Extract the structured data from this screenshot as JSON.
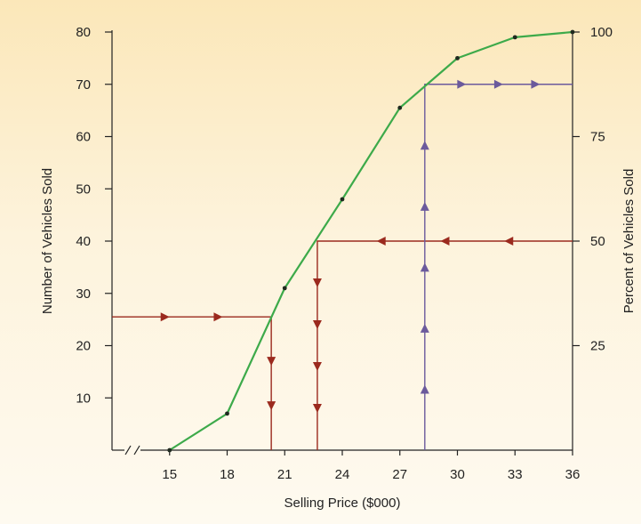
{
  "chart_data": {
    "type": "line",
    "title": "",
    "xlabel": "Selling Price ($000)",
    "ylabel": "Number of Vehicles Sold",
    "y2label": "Percent of Vehicles Sold",
    "xlim": [
      12,
      36
    ],
    "ylim": [
      0,
      80
    ],
    "y2lim": [
      0,
      100
    ],
    "x_axis_break": true,
    "x_ticks": [
      15,
      18,
      21,
      24,
      27,
      30,
      33,
      36
    ],
    "y_ticks": [
      10,
      20,
      30,
      40,
      50,
      60,
      70,
      80
    ],
    "y2_ticks": [
      25,
      50,
      75,
      100
    ],
    "grid": false,
    "series": [
      {
        "color": "#3daa4a",
        "points": [
          {
            "x": 15,
            "y": 0
          },
          {
            "x": 18,
            "y": 7
          },
          {
            "x": 21,
            "y": 31
          },
          {
            "x": 24,
            "y": 48
          },
          {
            "x": 27,
            "y": 65.5
          },
          {
            "x": 30,
            "y": 75
          },
          {
            "x": 33,
            "y": 79
          },
          {
            "x": 36,
            "y": 80
          }
        ]
      }
    ],
    "reference_lines": [
      {
        "color": "#9b2a1e",
        "from": {
          "x": 12,
          "y": 25.5
        },
        "corner": {
          "x": 20.3,
          "y": 25.5
        },
        "to": {
          "x": 20.3,
          "y": 0
        },
        "direction": "right-then-down"
      },
      {
        "color": "#9b2a1e",
        "from": {
          "x": 36,
          "y": 40
        },
        "corner": {
          "x": 22.7,
          "y": 40
        },
        "to": {
          "x": 22.7,
          "y": 0
        },
        "direction": "left-then-down"
      },
      {
        "color": "#6b5a9c",
        "from": {
          "x": 28.3,
          "y": 0
        },
        "corner": {
          "x": 28.3,
          "y": 70
        },
        "to": {
          "x": 36,
          "y": 70
        },
        "direction": "up-then-right"
      }
    ]
  }
}
